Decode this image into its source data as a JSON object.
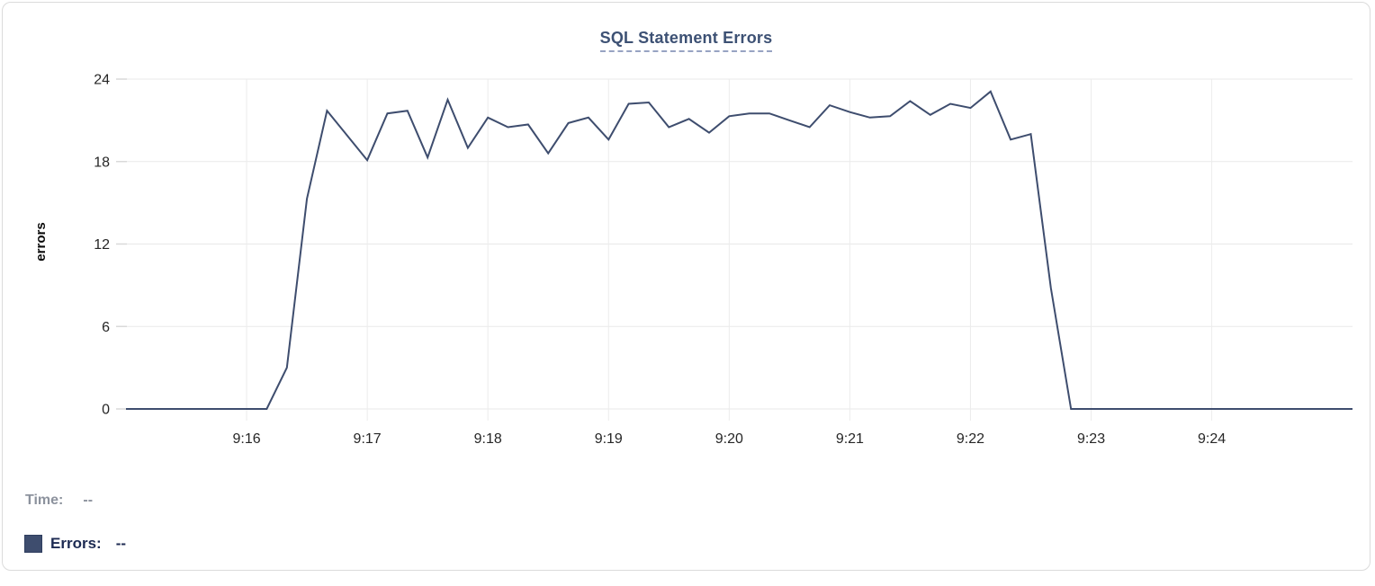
{
  "card": {
    "title": "SQL Statement Errors"
  },
  "colors": {
    "line": "#3e4d6e",
    "title": "#3d5174",
    "title_underline": "#97a3c2",
    "grid_h": "#e9e9e9",
    "grid_v": "#ececec",
    "tick": "#d9d9d9",
    "axis_text": "#262626",
    "axis_label_text": "#0b0b0b",
    "legend_time": "#8c929d",
    "legend_errors": "#1c2a52",
    "legend_swatch": "#3e4d6e",
    "card_border": "#dbdbdb"
  },
  "readout": {
    "time_label": "Time:",
    "time_value": "--",
    "errors_label": "Errors:",
    "errors_value": "--"
  },
  "chart_data": {
    "type": "line",
    "title": "SQL Statement Errors",
    "xlabel": "",
    "ylabel": "errors",
    "ylim": [
      0,
      24
    ],
    "y_ticks": [
      0,
      6,
      12,
      18,
      24
    ],
    "x_ticks": [
      "9:16",
      "9:17",
      "9:18",
      "9:19",
      "9:20",
      "9:21",
      "9:22",
      "9:23",
      "9:24"
    ],
    "grid": true,
    "legend_position": "bottom-left",
    "series": [
      {
        "name": "Errors",
        "start_time": "9:15:00",
        "interval_seconds": 10,
        "values": [
          0,
          0,
          0,
          0,
          0,
          0,
          0,
          0,
          3,
          15.3,
          21.7,
          19.9,
          18.1,
          21.5,
          21.7,
          18.3,
          22.5,
          19.0,
          21.2,
          20.5,
          20.7,
          18.6,
          20.8,
          21.2,
          19.6,
          22.2,
          22.3,
          20.5,
          21.1,
          20.1,
          21.3,
          21.5,
          21.5,
          21.0,
          20.5,
          22.1,
          21.6,
          21.2,
          21.3,
          22.4,
          21.4,
          22.2,
          21.9,
          23.1,
          19.6,
          20.0,
          8.8,
          0,
          0,
          0,
          0,
          0,
          0,
          0,
          0,
          0,
          0,
          0,
          0,
          0,
          0,
          0
        ]
      }
    ]
  }
}
